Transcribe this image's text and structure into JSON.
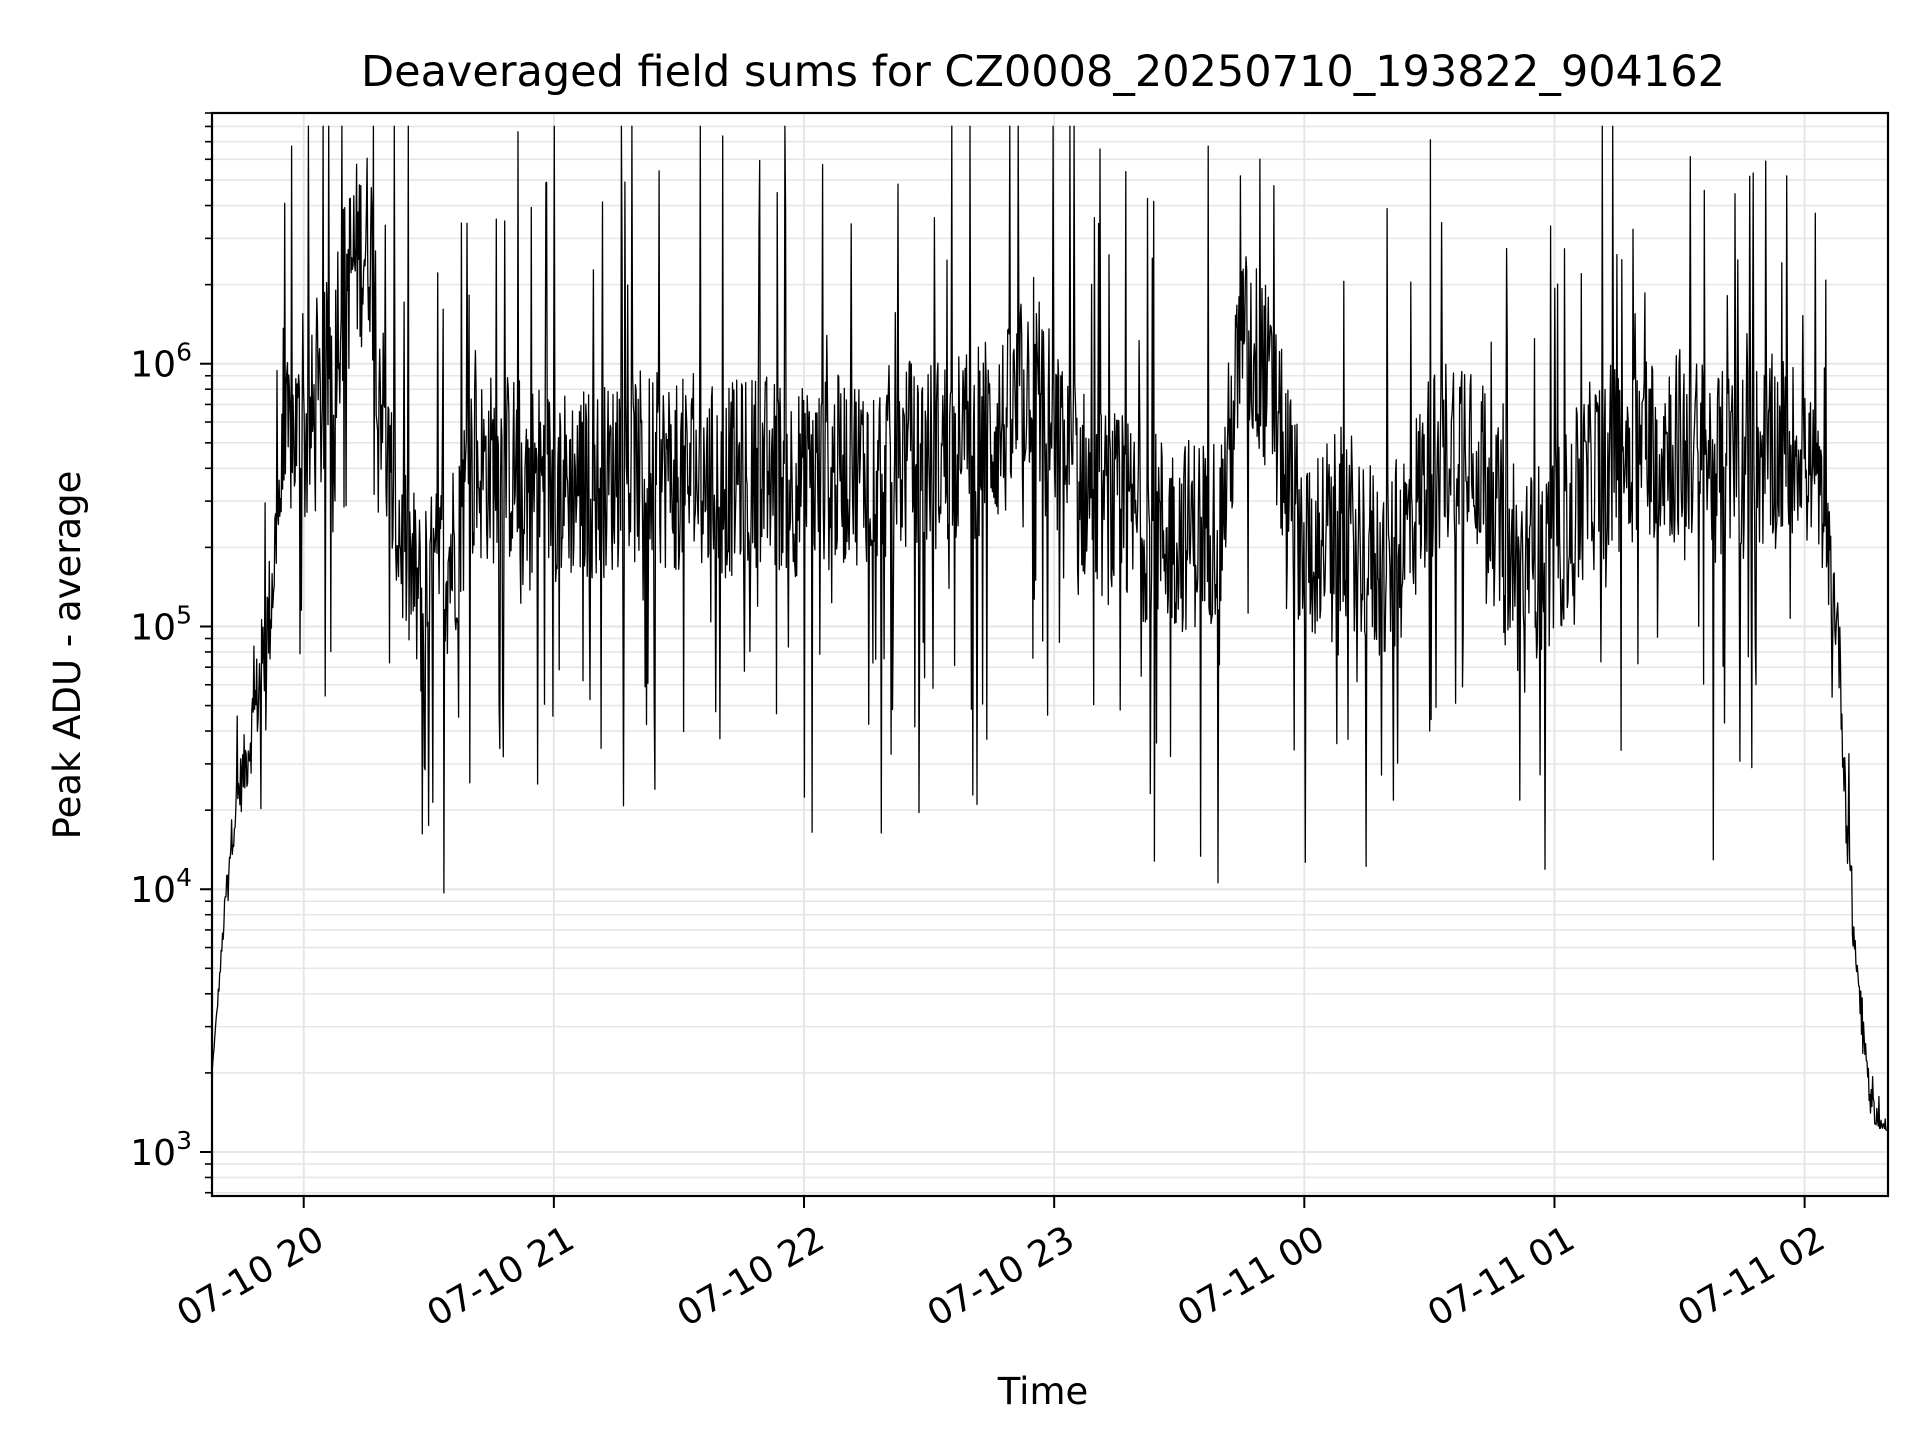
{
  "chart_data": {
    "type": "line",
    "title": "Deaveraged field sums for CZ0008_20250710_193822_904162",
    "xlabel": "Time",
    "ylabel": "Peak ADU - average",
    "yscale": "log",
    "grid": true,
    "line_color": "#000000",
    "grid_color": "#e6e6e6",
    "xlim": [
      "2025-07-10 19:38",
      "2025-07-11 02:20"
    ],
    "ylim": [
      680,
      9000000
    ],
    "x_ticks": [
      {
        "value": "2025-07-10 20:00",
        "label": "07-10 20"
      },
      {
        "value": "2025-07-10 21:00",
        "label": "07-10 21"
      },
      {
        "value": "2025-07-10 22:00",
        "label": "07-10 22"
      },
      {
        "value": "2025-07-10 23:00",
        "label": "07-10 23"
      },
      {
        "value": "2025-07-11 00:00",
        "label": "07-11 00"
      },
      {
        "value": "2025-07-11 01:00",
        "label": "07-11 01"
      },
      {
        "value": "2025-07-11 02:00",
        "label": "07-11 02"
      }
    ],
    "y_ticks": [
      {
        "value": 1000,
        "base": "10",
        "exp": "3"
      },
      {
        "value": 10000,
        "base": "10",
        "exp": "4"
      },
      {
        "value": 100000,
        "base": "10",
        "exp": "5"
      },
      {
        "value": 1000000,
        "base": "10",
        "exp": "6"
      }
    ],
    "series": [
      {
        "x": [
          "2025-07-10 19:38",
          "2025-07-10 19:40",
          "2025-07-10 19:42",
          "2025-07-10 19:44",
          "2025-07-10 19:46",
          "2025-07-10 19:48",
          "2025-07-10 19:50",
          "2025-07-10 19:52",
          "2025-07-10 19:54",
          "2025-07-10 19:56",
          "2025-07-10 19:58",
          "2025-07-10 20:00",
          "2025-07-10 20:04",
          "2025-07-10 20:08",
          "2025-07-10 20:12",
          "2025-07-10 20:16",
          "2025-07-10 20:20",
          "2025-07-10 20:24",
          "2025-07-10 20:28",
          "2025-07-10 20:32",
          "2025-07-10 20:36",
          "2025-07-10 20:40",
          "2025-07-10 20:50",
          "2025-07-10 21:00",
          "2025-07-10 21:10",
          "2025-07-10 21:20",
          "2025-07-10 21:30",
          "2025-07-10 21:40",
          "2025-07-10 21:50",
          "2025-07-10 22:00",
          "2025-07-10 22:10",
          "2025-07-10 22:20",
          "2025-07-10 22:30",
          "2025-07-10 22:40",
          "2025-07-10 22:50",
          "2025-07-10 22:55",
          "2025-07-10 23:00",
          "2025-07-10 23:10",
          "2025-07-10 23:20",
          "2025-07-10 23:30",
          "2025-07-10 23:40",
          "2025-07-10 23:45",
          "2025-07-10 23:50",
          "2025-07-11 00:00",
          "2025-07-11 00:10",
          "2025-07-11 00:20",
          "2025-07-11 00:30",
          "2025-07-11 00:40",
          "2025-07-11 00:50",
          "2025-07-11 01:00",
          "2025-07-11 01:10",
          "2025-07-11 01:20",
          "2025-07-11 01:30",
          "2025-07-11 01:40",
          "2025-07-11 01:50",
          "2025-07-11 02:00",
          "2025-07-11 02:04",
          "2025-07-11 02:08",
          "2025-07-11 02:10",
          "2025-07-11 02:12",
          "2025-07-11 02:14",
          "2025-07-11 02:16",
          "2025-07-11 02:18",
          "2025-07-11 02:20"
        ],
        "y": [
          2000,
          5000,
          13000,
          22000,
          30000,
          45000,
          70000,
          120000,
          300000,
          500000,
          550000,
          500000,
          650000,
          1500000,
          2500000,
          3000000,
          400000,
          200000,
          120000,
          150000,
          200000,
          400000,
          400000,
          350000,
          350000,
          400000,
          380000,
          350000,
          400000,
          350000,
          400000,
          420000,
          450000,
          500000,
          600000,
          1000000,
          500000,
          300000,
          250000,
          220000,
          250000,
          1200000,
          1000000,
          200000,
          250000,
          150000,
          400000,
          600000,
          150000,
          200000,
          400000,
          500000,
          500000,
          400000,
          450000,
          500000,
          300000,
          100000,
          20000,
          6000,
          3000,
          1500,
          1300,
          1200
        ]
      }
    ]
  }
}
